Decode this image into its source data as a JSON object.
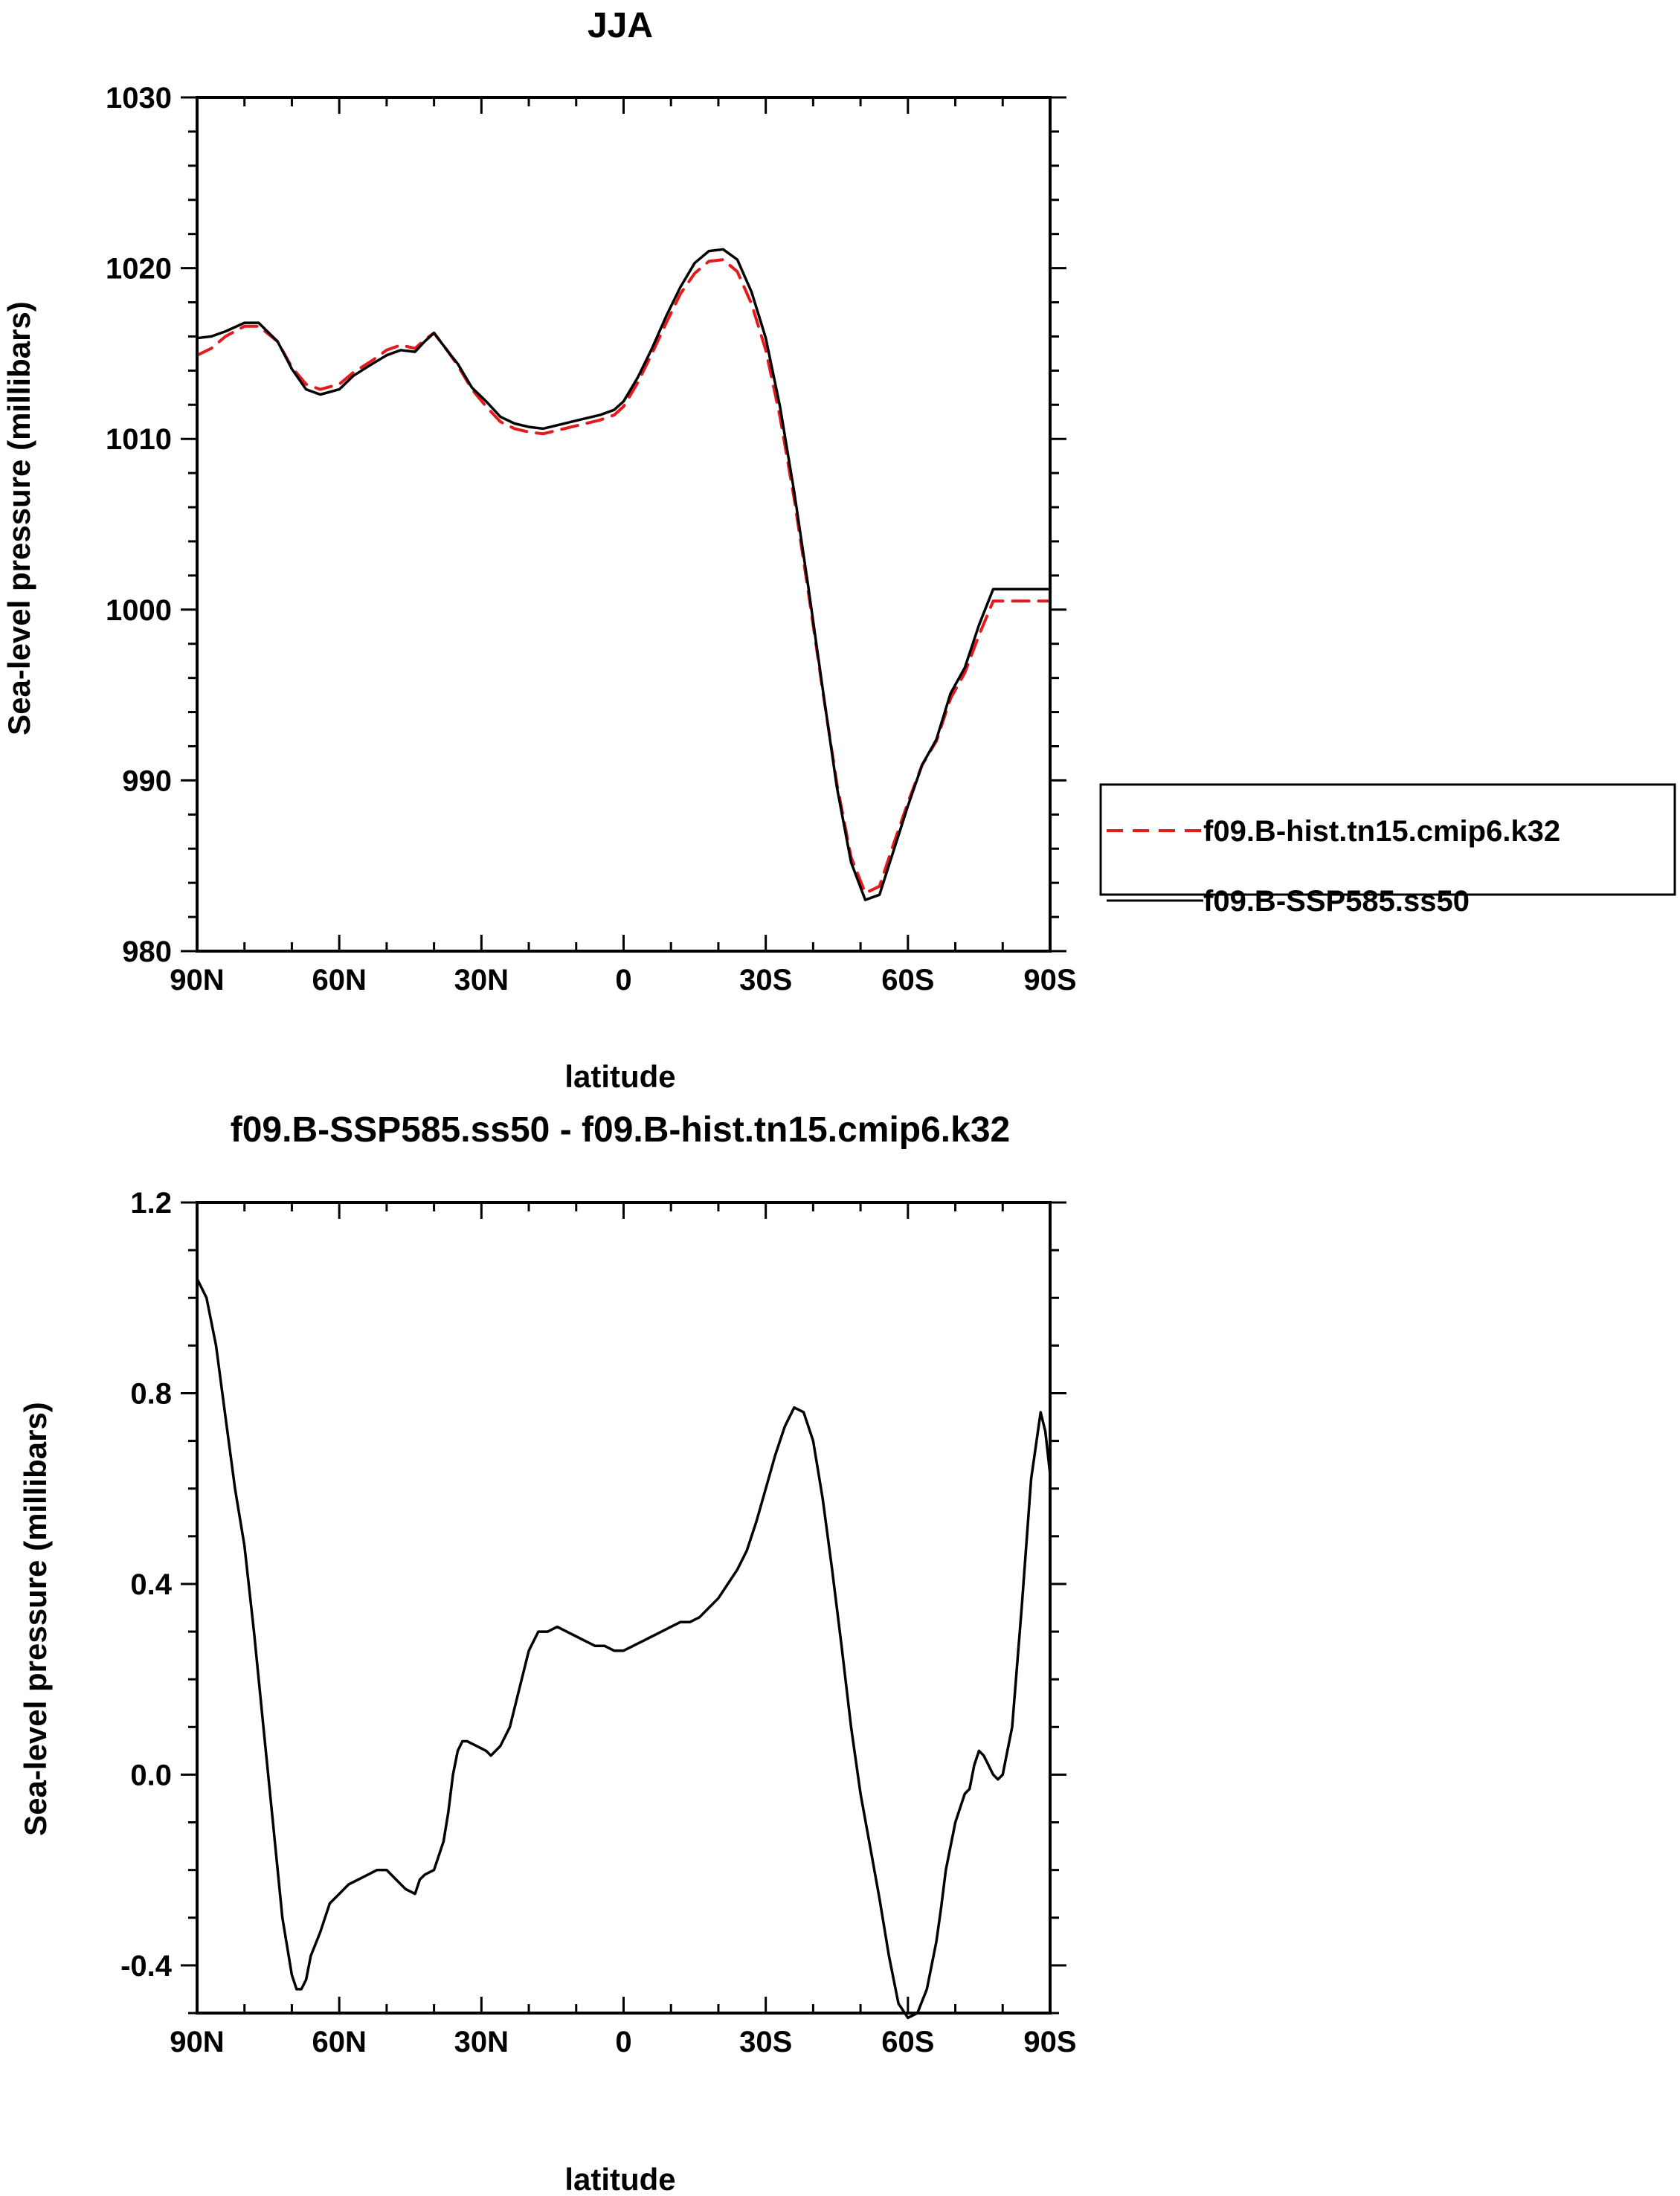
{
  "chart_data": [
    {
      "type": "line",
      "title": "JJA",
      "xlabel": "latitude",
      "ylabel": "Sea-level pressure (millibars)",
      "xlim": [
        90,
        -90
      ],
      "ylim": [
        980,
        1030
      ],
      "x_ticks": [
        90,
        60,
        30,
        0,
        -30,
        -60,
        -90
      ],
      "x_tick_labels": [
        "90N",
        "60N",
        "30N",
        "0",
        "30S",
        "60S",
        "90S"
      ],
      "y_ticks": [
        980,
        990,
        1000,
        1010,
        1020,
        1030
      ],
      "y_tick_labels": [
        "980",
        "990",
        "1000",
        "1010",
        "1020",
        "1030"
      ],
      "grid": false,
      "legend_position": "right",
      "series": [
        {
          "name": "f09.B-hist.tn15.cmip6.k32",
          "color": "#e41a1c",
          "dash": "dashed",
          "x": [
            90,
            87,
            84,
            80,
            77,
            73,
            70,
            67,
            64,
            60,
            57,
            53,
            50,
            47,
            44,
            42,
            40,
            37,
            35,
            32,
            29,
            26,
            23,
            20,
            17,
            14,
            11,
            8,
            5,
            2,
            0,
            -3,
            -6,
            -9,
            -12,
            -15,
            -18,
            -21,
            -24,
            -27,
            -30,
            -33,
            -36,
            -39,
            -42,
            -45,
            -48,
            -51,
            -54,
            -57,
            -60,
            -63,
            -66,
            -69,
            -72,
            -75,
            -78,
            -81,
            -84,
            -87,
            -90
          ],
          "y": [
            1014.9,
            1015.3,
            1016.0,
            1016.6,
            1016.6,
            1015.7,
            1014.2,
            1013.2,
            1012.9,
            1013.2,
            1013.9,
            1014.6,
            1015.2,
            1015.5,
            1015.3,
            1015.8,
            1016.2,
            1015.1,
            1014.3,
            1012.9,
            1011.9,
            1011.0,
            1010.6,
            1010.4,
            1010.3,
            1010.5,
            1010.7,
            1010.9,
            1011.1,
            1011.4,
            1011.9,
            1013.3,
            1015.0,
            1016.8,
            1018.5,
            1019.7,
            1020.4,
            1020.5,
            1019.8,
            1017.9,
            1015.2,
            1011.3,
            1006.5,
            1001.0,
            995.3,
            989.8,
            985.5,
            983.4,
            983.8,
            986.3,
            988.7,
            990.9,
            992.3,
            994.8,
            996.3,
            998.5,
            1000.5,
            1000.5,
            1000.5,
            1000.5,
            1000.5
          ]
        },
        {
          "name": "f09.B-SSP585.ss50",
          "color": "#000000",
          "dash": "solid",
          "x": [
            90,
            87,
            84,
            80,
            77,
            73,
            70,
            67,
            64,
            60,
            57,
            53,
            50,
            47,
            44,
            42,
            40,
            37,
            35,
            32,
            29,
            26,
            23,
            20,
            17,
            14,
            11,
            8,
            5,
            2,
            0,
            -3,
            -6,
            -9,
            -12,
            -15,
            -18,
            -21,
            -24,
            -27,
            -30,
            -33,
            -36,
            -39,
            -42,
            -45,
            -48,
            -51,
            -54,
            -57,
            -60,
            -63,
            -66,
            -69,
            -72,
            -75,
            -78,
            -81,
            -84,
            -87,
            -90
          ],
          "y": [
            1015.9,
            1016.0,
            1016.3,
            1016.8,
            1016.8,
            1015.7,
            1014.1,
            1012.9,
            1012.6,
            1012.9,
            1013.7,
            1014.4,
            1014.9,
            1015.2,
            1015.1,
            1015.7,
            1016.2,
            1015.1,
            1014.4,
            1013.0,
            1012.2,
            1011.3,
            1010.9,
            1010.7,
            1010.6,
            1010.8,
            1011.0,
            1011.2,
            1011.4,
            1011.7,
            1012.2,
            1013.6,
            1015.3,
            1017.2,
            1018.9,
            1020.3,
            1021.0,
            1021.1,
            1020.5,
            1018.6,
            1015.9,
            1011.9,
            1006.9,
            1001.3,
            995.4,
            989.6,
            985.2,
            983.0,
            983.3,
            985.9,
            988.5,
            990.9,
            992.4,
            995.1,
            996.6,
            999.1,
            1001.2,
            1001.2,
            1001.2,
            1001.2,
            1001.2
          ]
        }
      ]
    },
    {
      "type": "line",
      "title": "f09.B-SSP585.ss50 - f09.B-hist.tn15.cmip6.k32",
      "xlabel": "latitude",
      "ylabel": "Sea-level pressure (millibars)",
      "xlim": [
        90,
        -90
      ],
      "ylim": [
        -0.5,
        1.2
      ],
      "x_ticks": [
        90,
        60,
        30,
        0,
        -30,
        -60,
        -90
      ],
      "x_tick_labels": [
        "90N",
        "60N",
        "30N",
        "0",
        "30S",
        "60S",
        "90S"
      ],
      "y_ticks": [
        -0.4,
        0.0,
        0.4,
        0.8,
        1.2
      ],
      "y_tick_labels": [
        "-0.4",
        "0.0",
        "0.4",
        "0.8",
        "1.2"
      ],
      "grid": false,
      "series": [
        {
          "color": "#000000",
          "dash": "solid",
          "x": [
            90,
            88,
            86,
            84,
            82,
            80,
            78,
            76,
            74,
            72,
            70,
            69,
            68,
            67,
            66,
            64,
            62,
            60,
            58,
            56,
            54,
            52,
            50,
            48,
            46,
            44,
            43,
            42,
            40,
            38,
            37,
            36,
            35,
            34,
            33,
            31,
            29,
            28,
            26,
            24,
            22,
            20,
            18,
            16,
            14,
            12,
            10,
            8,
            6,
            4,
            2,
            0,
            -2,
            -4,
            -6,
            -8,
            -10,
            -12,
            -14,
            -16,
            -18,
            -20,
            -22,
            -24,
            -26,
            -28,
            -30,
            -32,
            -34,
            -36,
            -38,
            -40,
            -42,
            -44,
            -46,
            -48,
            -50,
            -52,
            -54,
            -56,
            -58,
            -60,
            -62,
            -64,
            -65,
            -66,
            -67,
            -68,
            -70,
            -72,
            -73,
            -74,
            -75,
            -76,
            -78,
            -79,
            -80,
            -81,
            -82,
            -84,
            -86,
            -88,
            -89,
            -90
          ],
          "y": [
            1.04,
            1.0,
            0.9,
            0.75,
            0.6,
            0.48,
            0.3,
            0.1,
            -0.1,
            -0.3,
            -0.42,
            -0.45,
            -0.45,
            -0.43,
            -0.38,
            -0.33,
            -0.27,
            -0.25,
            -0.23,
            -0.22,
            -0.21,
            -0.2,
            -0.2,
            -0.22,
            -0.24,
            -0.25,
            -0.22,
            -0.21,
            -0.2,
            -0.14,
            -0.08,
            0.0,
            0.05,
            0.07,
            0.07,
            0.06,
            0.05,
            0.04,
            0.06,
            0.1,
            0.18,
            0.26,
            0.3,
            0.3,
            0.31,
            0.3,
            0.29,
            0.28,
            0.27,
            0.27,
            0.26,
            0.26,
            0.27,
            0.28,
            0.29,
            0.3,
            0.31,
            0.32,
            0.32,
            0.33,
            0.35,
            0.37,
            0.4,
            0.43,
            0.47,
            0.53,
            0.6,
            0.67,
            0.73,
            0.77,
            0.76,
            0.7,
            0.58,
            0.43,
            0.27,
            0.1,
            -0.04,
            -0.15,
            -0.26,
            -0.38,
            -0.48,
            -0.51,
            -0.5,
            -0.45,
            -0.4,
            -0.35,
            -0.28,
            -0.2,
            -0.1,
            -0.04,
            -0.03,
            0.02,
            0.05,
            0.04,
            0.0,
            -0.01,
            0.0,
            0.05,
            0.1,
            0.35,
            0.62,
            0.76,
            0.72,
            0.63
          ]
        }
      ]
    }
  ]
}
